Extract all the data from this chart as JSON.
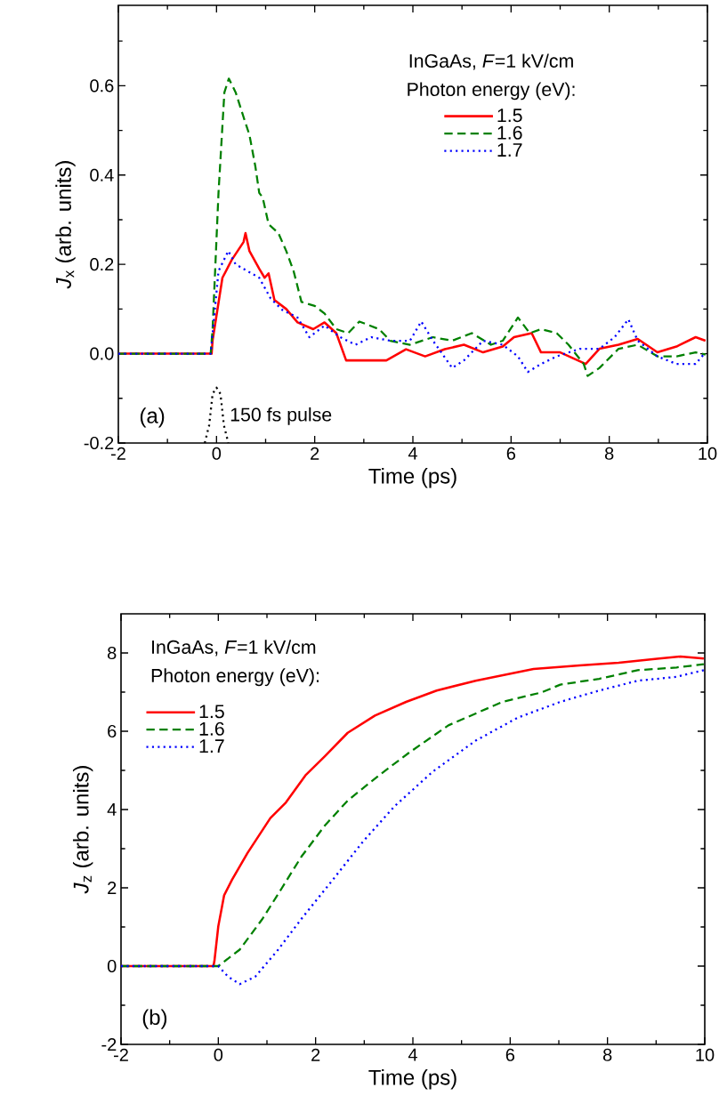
{
  "chart_data": [
    {
      "type": "line",
      "xlabel": "Time (ps)",
      "ylabel": "*J*$_{x}$ (arb. units)",
      "legend_title": "Photon energy (eV):",
      "legend": "top right",
      "xlim": [
        -2,
        10
      ],
      "ylim": [
        -0.2,
        0.78
      ],
      "xticks": [
        -2,
        {
          "value": -1,
          "label": null
        },
        0,
        {
          "value": 1,
          "label": null
        },
        2,
        {
          "value": 3,
          "label": null
        },
        4,
        {
          "value": 5,
          "label": null
        },
        6,
        {
          "value": 7,
          "label": null
        },
        8,
        {
          "value": 9,
          "label": null
        },
        10
      ],
      "yticks": [
        {
          "value": -0.2,
          "label": "-0.2"
        },
        {
          "value": -0.1,
          "label": null
        },
        {
          "value": 0,
          "label": "0.0"
        },
        {
          "value": 0.1,
          "label": null
        },
        0.2,
        {
          "value": 0.3,
          "label": null
        },
        0.4,
        {
          "value": 0.5,
          "label": null
        },
        0.6,
        {
          "value": 0.7,
          "label": null
        }
      ],
      "annotations": [
        "InGaAs, *F*=1 kV/cm",
        "(a)",
        {
          "text": "150 fs pulse",
          "x": 0.24,
          "y": -0.14
        }
      ],
      "series": [
        {
          "name": "1.5",
          "color": "#ff0000",
          "line_style": "solid",
          "x": [
            -2,
            -0.1,
            -0.08,
            0.12,
            0.31,
            0.55,
            0.59,
            0.67,
            0.87,
            0.98,
            1.06,
            1.18,
            1.42,
            1.65,
            1.97,
            2.2,
            2.44,
            2.64,
            3.07,
            3.46,
            3.86,
            4.25,
            4.65,
            5.04,
            5.43,
            5.83,
            6.06,
            6.42,
            6.61,
            7.0,
            7.52,
            7.8,
            8.19,
            8.58,
            8.98,
            9.37,
            9.76,
            9.96
          ],
          "values": [
            0,
            0,
            0.03,
            0.17,
            0.21,
            0.25,
            0.27,
            0.23,
            0.19,
            0.17,
            0.18,
            0.12,
            0.1,
            0.07,
            0.055,
            0.07,
            0.046,
            -0.015,
            -0.015,
            -0.015,
            0.01,
            -0.006,
            0.01,
            0.02,
            0.003,
            0.016,
            0.037,
            0.046,
            0.003,
            0.003,
            -0.023,
            0.011,
            0.02,
            0.033,
            0.003,
            0.016,
            0.037,
            0.029
          ]
        },
        {
          "name": "1.6",
          "color": "#008000",
          "line_style": "dashed",
          "x": [
            -2,
            -0.12,
            -0.08,
            0.04,
            0.16,
            0.25,
            0.39,
            0.55,
            0.67,
            0.79,
            0.87,
            0.94,
            1.06,
            1.26,
            1.42,
            1.57,
            1.73,
            2.0,
            2.2,
            2.44,
            2.68,
            2.91,
            3.31,
            3.54,
            3.94,
            4.41,
            4.8,
            5.2,
            5.59,
            5.83,
            6.14,
            6.38,
            6.61,
            6.93,
            7.17,
            7.48,
            7.56,
            7.8,
            8.19,
            8.58,
            8.98,
            9.37,
            9.76,
            9.96
          ],
          "values": [
            0,
            0,
            0.055,
            0.36,
            0.585,
            0.616,
            0.585,
            0.53,
            0.49,
            0.42,
            0.36,
            0.35,
            0.29,
            0.27,
            0.23,
            0.185,
            0.116,
            0.107,
            0.09,
            0.055,
            0.046,
            0.072,
            0.055,
            0.029,
            0.02,
            0.037,
            0.029,
            0.046,
            0.02,
            0.029,
            0.081,
            0.046,
            0.055,
            0.046,
            0.02,
            -0.023,
            -0.05,
            -0.032,
            0.011,
            0.02,
            -0.006,
            -0.006,
            0.003,
            -0.002
          ]
        },
        {
          "name": "1.7",
          "color": "#0000ff",
          "line_style": "dotted",
          "x": [
            -2,
            -0.12,
            -0.08,
            0.04,
            0.24,
            0.39,
            0.63,
            0.87,
            1.1,
            1.34,
            1.65,
            1.89,
            2.2,
            2.52,
            2.83,
            3.15,
            3.54,
            3.94,
            4.17,
            4.41,
            4.8,
            5.04,
            5.43,
            5.83,
            6.14,
            6.34,
            6.61,
            6.93,
            7.4,
            7.8,
            8.11,
            8.39,
            8.58,
            8.98,
            9.37,
            9.76,
            9.96
          ],
          "values": [
            0,
            0,
            0.046,
            0.185,
            0.23,
            0.2,
            0.185,
            0.17,
            0.124,
            0.098,
            0.081,
            0.037,
            0.063,
            0.037,
            0.02,
            0.037,
            0.029,
            0.029,
            0.072,
            0.029,
            -0.032,
            -0.015,
            0.029,
            0.02,
            -0.006,
            -0.041,
            -0.023,
            -0.006,
            0.011,
            0.011,
            0.037,
            0.077,
            0.029,
            -0.006,
            -0.023,
            -0.023,
            0.003
          ]
        },
        {
          "color": "#000000",
          "line_style": "dotted",
          "x": [
            -0.24,
            -0.15,
            -0.08,
            0,
            0.08,
            0.15,
            0.24
          ],
          "values": [
            -0.2,
            -0.16,
            -0.09,
            -0.076,
            -0.09,
            -0.16,
            -0.2
          ]
        }
      ]
    },
    {
      "type": "line",
      "xlabel": "Time (ps)",
      "ylabel": "*J*$_{z}$ (arb. units)",
      "legend_title": "Photon energy (eV):",
      "legend": "top left",
      "xlim": [
        -2,
        10
      ],
      "ylim": [
        -2,
        9
      ],
      "xticks": [
        -2,
        {
          "value": -1,
          "label": null
        },
        0,
        {
          "value": 1,
          "label": null
        },
        2,
        {
          "value": 3,
          "label": null
        },
        4,
        {
          "value": 5,
          "label": null
        },
        6,
        {
          "value": 7,
          "label": null
        },
        8,
        {
          "value": 9,
          "label": null
        },
        10
      ],
      "yticks": [
        -2,
        {
          "value": -1,
          "label": null
        },
        0,
        {
          "value": 1,
          "label": null
        },
        2,
        {
          "value": 3,
          "label": null
        },
        4,
        {
          "value": 5,
          "label": null
        },
        6,
        {
          "value": 7,
          "label": null
        },
        8
      ],
      "annotations": [
        "InGaAs, *F*=1 kV/cm",
        "(b)"
      ],
      "series": [
        {
          "name": "1.5",
          "color": "#ff0000",
          "line_style": "solid",
          "x": [
            -2,
            -0.1,
            -0.08,
            0,
            0.12,
            0.28,
            0.6,
            1.07,
            1.39,
            1.79,
            2.19,
            2.66,
            3.22,
            3.86,
            4.49,
            5.29,
            6.48,
            7.43,
            8.23,
            9.02,
            9.5,
            9.98
          ],
          "values": [
            0,
            0,
            0.13,
            1.02,
            1.81,
            2.2,
            2.89,
            3.78,
            4.18,
            4.87,
            5.36,
            5.96,
            6.4,
            6.75,
            7.04,
            7.29,
            7.59,
            7.68,
            7.75,
            7.85,
            7.91,
            7.86
          ]
        },
        {
          "name": "1.6",
          "color": "#008000",
          "line_style": "dashed",
          "x": [
            -2,
            0,
            0.44,
            0.91,
            1.31,
            1.71,
            2.19,
            2.66,
            3.3,
            3.93,
            4.73,
            5.84,
            6.64,
            7.03,
            7.83,
            8.62,
            9.42,
            9.98
          ],
          "values": [
            0,
            0,
            0.42,
            1.21,
            2.0,
            2.8,
            3.59,
            4.23,
            4.87,
            5.46,
            6.15,
            6.75,
            6.99,
            7.19,
            7.34,
            7.56,
            7.63,
            7.71
          ]
        },
        {
          "name": "1.7",
          "color": "#0000ff",
          "line_style": "dotted",
          "x": [
            -2,
            0,
            0.2,
            0.44,
            0.76,
            1.23,
            1.71,
            2.35,
            2.98,
            3.62,
            4.41,
            5.29,
            6.16,
            7.03,
            7.83,
            8.62,
            9.42,
            9.98
          ],
          "values": [
            0,
            0,
            -0.27,
            -0.46,
            -0.27,
            0.42,
            1.21,
            2.2,
            3.19,
            4.08,
            4.97,
            5.76,
            6.35,
            6.75,
            7.04,
            7.29,
            7.39,
            7.56
          ]
        }
      ]
    }
  ]
}
